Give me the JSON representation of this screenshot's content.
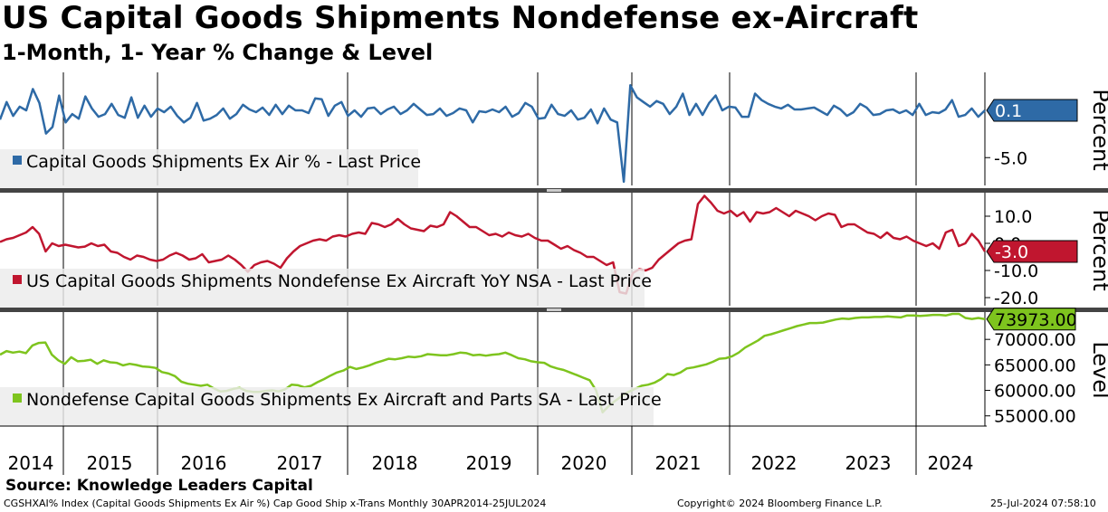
{
  "header": {
    "title": "US Capital Goods Shipments Nondefense ex-Aircraft",
    "subtitle": "1-Month, 1- Year % Change & Level"
  },
  "footer": {
    "source": "Source: Knowledge Leaders Capital",
    "ticker_info": "CGSHXAI% Index (Capital Goods Shipments Ex Air %) Cap Good Ship x-Trans  Monthly 30APR2014-25JUL2024",
    "copyright": "Copyright© 2024 Bloomberg Finance L.P.",
    "timestamp": "25-Jul-2024 07:58:10"
  },
  "colors": {
    "panel1": "#2e6aa6",
    "panel2": "#c0162f",
    "panel3": "#7ec41e"
  },
  "chart_data": [
    {
      "type": "line",
      "title": "Capital Goods Shipments Ex Air % - Last Price",
      "ylabel": "Percent",
      "last_value": "0.1",
      "ylim": [
        -8,
        4
      ],
      "yticks": [
        -5.0
      ],
      "ytick_labels": [
        "-5.0"
      ],
      "x_start": 2014.33,
      "x_end": 2024.5,
      "values": [
        -0.9,
        1.0,
        -0.5,
        0.5,
        0.1,
        2.4,
        0.9,
        -2.4,
        -1.7,
        1.7,
        -1.2,
        -0.3,
        -0.8,
        1.6,
        0.3,
        -0.6,
        -0.3,
        0.8,
        -0.4,
        -0.7,
        1.5,
        -0.7,
        0.6,
        -0.6,
        0.3,
        -0.1,
        0.5,
        -0.5,
        -1.2,
        -0.7,
        0.9,
        -1.0,
        -0.8,
        -0.4,
        0.3,
        -0.8,
        -0.3,
        0.7,
        0.2,
        -0.1,
        0.4,
        -0.4,
        0.7,
        -0.3,
        0.6,
        0.1,
        0.1,
        -0.2,
        1.4,
        1.3,
        -0.5,
        0.6,
        1.0,
        -0.5,
        0.1,
        -0.6,
        0.3,
        0.4,
        -0.3,
        0.2,
        0.5,
        -0.3,
        0.1,
        0.8,
        0.2,
        -0.4,
        -0.3,
        0.3,
        -0.5,
        -0.2,
        0.3,
        0.1,
        -1.2,
        0.0,
        -0.1,
        0.2,
        -0.1,
        0.5,
        -0.6,
        -0.2,
        0.9,
        0.5,
        -0.8,
        -0.7,
        0.7,
        -0.3,
        -0.5,
        0.1,
        -0.9,
        -0.7,
        0.2,
        -1.3,
        0.3,
        -0.9,
        -1.2,
        -7.6,
        2.8,
        1.5,
        1.0,
        0.5,
        1.1,
        0.8,
        -0.3,
        0.5,
        1.9,
        -0.4,
        0.8,
        -0.4,
        0.9,
        1.7,
        0.1,
        0.5,
        0.4,
        -0.6,
        -0.6,
        1.9,
        1.2,
        0.8,
        0.5,
        0.3,
        0.7,
        0.2,
        0.2,
        0.3,
        0.4,
        0.0,
        -0.4,
        0.6,
        0.2,
        -0.5,
        -0.1,
        0.8,
        0.4,
        -0.4,
        -0.3,
        0.1,
        0.2,
        -0.2,
        0.1,
        -0.4,
        0.8,
        -0.4,
        -0.1,
        -0.2,
        0.2,
        1.2,
        -0.6,
        -0.4,
        0.3,
        -0.6,
        0.1
      ]
    },
    {
      "type": "line",
      "title": "US Capital Goods Shipments Nondefense Ex Aircraft YoY NSA - Last Price",
      "ylabel": "Percent",
      "last_value": "-3.0",
      "ylim": [
        -23,
        18
      ],
      "yticks": [
        10.0,
        0.0,
        -10.0,
        -20.0
      ],
      "ytick_labels": [
        "10.0",
        "0.0",
        "-10.0",
        "-20.0"
      ],
      "x_start": 2014.33,
      "x_end": 2024.5,
      "values": [
        0.5,
        1.5,
        2.0,
        3.0,
        4.0,
        6.0,
        3.5,
        -3.0,
        0.0,
        -1.0,
        -0.5,
        -1.0,
        -1.5,
        -1.2,
        0.0,
        -1.0,
        -0.5,
        -3.0,
        -3.5,
        -5.0,
        -6.0,
        -4.5,
        -5.0,
        -6.0,
        -6.5,
        -6.0,
        -4.5,
        -3.5,
        -4.5,
        -6.0,
        -5.5,
        -4.0,
        -7.0,
        -6.5,
        -6.0,
        -4.5,
        -6.0,
        -8.0,
        -10.5,
        -8.0,
        -7.0,
        -6.5,
        -7.5,
        -9.0,
        -5.5,
        -3.0,
        -1.0,
        0.0,
        1.0,
        1.5,
        1.0,
        2.5,
        3.0,
        2.5,
        3.5,
        4.0,
        3.5,
        7.5,
        7.0,
        6.0,
        7.0,
        9.0,
        7.0,
        5.5,
        5.0,
        4.5,
        6.5,
        6.0,
        7.0,
        11.5,
        10.0,
        8.0,
        6.0,
        6.0,
        4.5,
        3.0,
        3.5,
        2.5,
        4.0,
        3.0,
        2.5,
        3.5,
        2.0,
        1.0,
        1.0,
        -0.5,
        -2.0,
        -1.0,
        -2.5,
        -3.5,
        -5.0,
        -5.0,
        -6.5,
        -8.0,
        -7.0,
        -18.0,
        -18.5,
        -11.0,
        -9.5,
        -10.0,
        -9.0,
        -6.0,
        -4.0,
        -2.0,
        0.0,
        1.0,
        1.5,
        14.5,
        17.5,
        15.0,
        12.0,
        11.0,
        12.0,
        10.0,
        11.5,
        8.0,
        11.5,
        11.0,
        11.5,
        13.0,
        11.5,
        10.0,
        12.0,
        11.0,
        10.0,
        8.5,
        10.0,
        11.0,
        10.5,
        6.0,
        7.0,
        7.0,
        5.5,
        4.0,
        3.5,
        2.0,
        4.0,
        2.0,
        1.5,
        2.5,
        1.0,
        0.0,
        -1.0,
        0.0,
        -2.0,
        4.0,
        5.0,
        -1.0,
        0.0,
        3.5,
        1.0,
        -3.0
      ]
    },
    {
      "type": "line",
      "title": "Nondefense Capital Goods Shipments Ex Aircraft and Parts SA - Last Price",
      "ylabel": "Level",
      "last_value": "73973.00",
      "ylim": [
        53000,
        75000
      ],
      "yticks": [
        70000,
        65000,
        60000,
        55000
      ],
      "ytick_labels": [
        "70000.00",
        "65000.00",
        "60000.00",
        "55000.00"
      ],
      "x_start": 2014.33,
      "x_end": 2024.5,
      "values": [
        67000,
        67700,
        67400,
        67600,
        67300,
        68800,
        69300,
        69400,
        67000,
        65900,
        65200,
        66500,
        65700,
        65800,
        66000,
        65200,
        65900,
        65500,
        65400,
        64900,
        65200,
        65000,
        64700,
        64600,
        64400,
        63600,
        63300,
        62800,
        61700,
        61300,
        61100,
        60900,
        61100,
        60400,
        59800,
        59900,
        60300,
        60500,
        59900,
        59700,
        59700,
        59900,
        60000,
        59800,
        60200,
        61100,
        61000,
        60600,
        60900,
        61600,
        62200,
        62900,
        63500,
        63900,
        64600,
        64200,
        64500,
        64900,
        65400,
        65800,
        66200,
        66100,
        66300,
        66600,
        66500,
        66700,
        67100,
        67000,
        66900,
        66900,
        67100,
        67400,
        67300,
        66900,
        67000,
        66800,
        67000,
        67100,
        67400,
        66900,
        66300,
        66100,
        65700,
        65500,
        65400,
        64700,
        64300,
        64000,
        63500,
        63000,
        62500,
        62000,
        60000,
        55700,
        57000,
        58000,
        58900,
        59700,
        60300,
        60900,
        61100,
        61500,
        62200,
        63200,
        63000,
        63500,
        64300,
        64500,
        64800,
        65100,
        65600,
        66200,
        66300,
        66700,
        67400,
        68400,
        69100,
        69800,
        70700,
        71000,
        71400,
        71800,
        72200,
        72600,
        72900,
        73200,
        73200,
        73300,
        73600,
        73900,
        74100,
        74000,
        74200,
        74300,
        74300,
        74400,
        74400,
        74500,
        74400,
        74300,
        74700,
        74700,
        74600,
        74700,
        74800,
        74800,
        74700,
        75000,
        75000,
        74200,
        74000,
        74200,
        73973
      ]
    }
  ],
  "x_axis": {
    "years": [
      "2014",
      "2015",
      "2016",
      "2017",
      "2018",
      "2019",
      "2020",
      "2021",
      "2022",
      "2023",
      "2024"
    ]
  }
}
